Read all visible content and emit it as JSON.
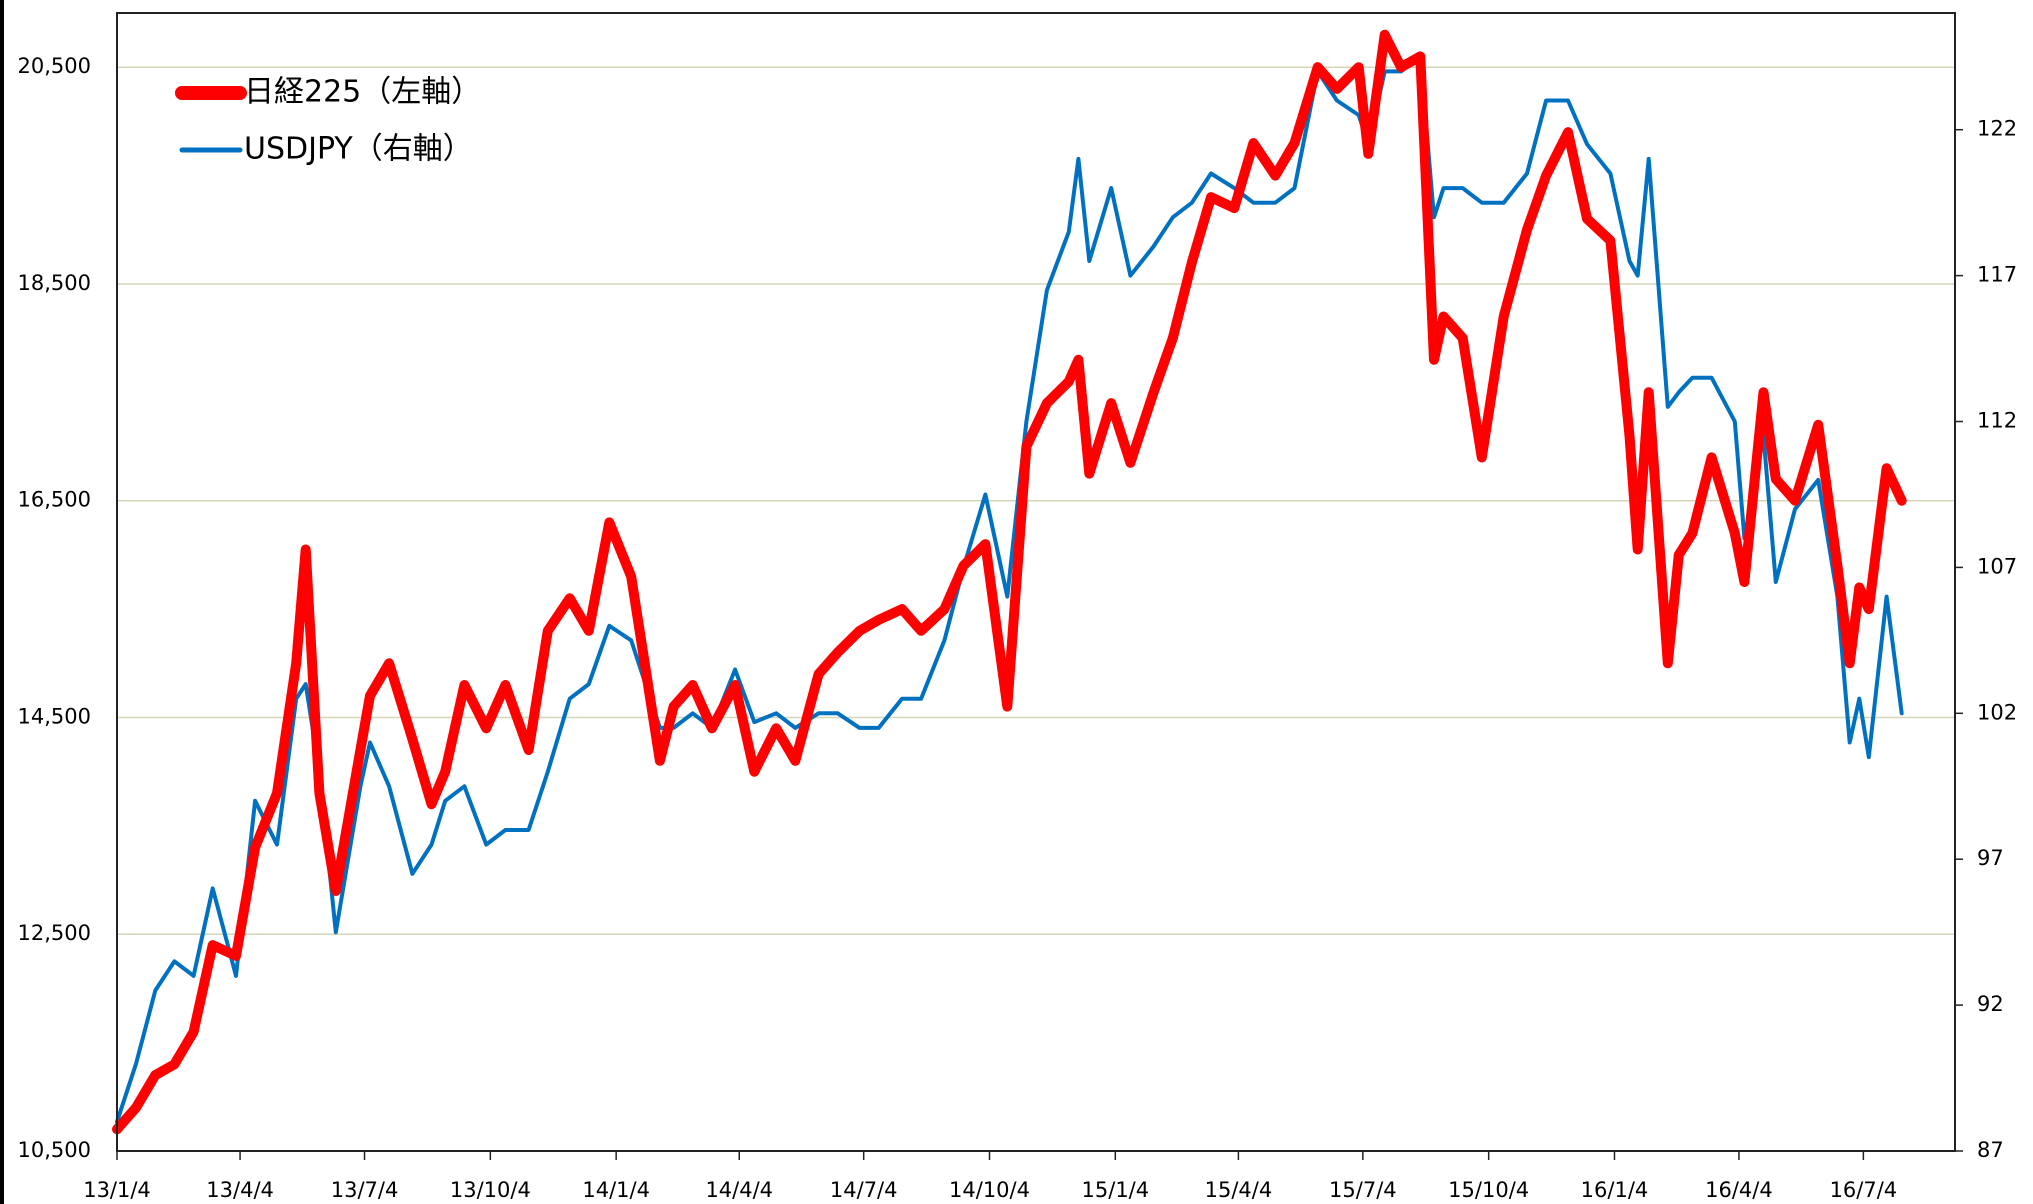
{
  "chart_data": {
    "type": "line",
    "x": [
      "2013-01-04",
      "2013-01-18",
      "2013-02-01",
      "2013-02-15",
      "2013-03-01",
      "2013-03-15",
      "2013-04-01",
      "2013-04-15",
      "2013-05-01",
      "2013-05-15",
      "2013-05-22",
      "2013-06-01",
      "2013-06-13",
      "2013-07-01",
      "2013-07-08",
      "2013-07-22",
      "2013-08-08",
      "2013-08-22",
      "2013-09-01",
      "2013-09-15",
      "2013-10-01",
      "2013-10-15",
      "2013-11-01",
      "2013-11-15",
      "2013-12-01",
      "2013-12-15",
      "2013-12-30",
      "2014-01-15",
      "2014-02-05",
      "2014-02-15",
      "2014-03-01",
      "2014-03-15",
      "2014-04-01",
      "2014-04-15",
      "2014-05-01",
      "2014-05-15",
      "2014-06-01",
      "2014-06-15",
      "2014-07-01",
      "2014-07-15",
      "2014-08-01",
      "2014-08-15",
      "2014-09-01",
      "2014-09-15",
      "2014-10-01",
      "2014-10-17",
      "2014-10-31",
      "2014-11-15",
      "2014-12-01",
      "2014-12-08",
      "2014-12-16",
      "2015-01-01",
      "2015-01-15",
      "2015-02-01",
      "2015-02-15",
      "2015-03-01",
      "2015-03-15",
      "2015-04-01",
      "2015-04-15",
      "2015-05-01",
      "2015-05-15",
      "2015-06-01",
      "2015-06-15",
      "2015-07-01",
      "2015-07-08",
      "2015-07-20",
      "2015-08-01",
      "2015-08-15",
      "2015-08-25",
      "2015-09-01",
      "2015-09-15",
      "2015-09-29",
      "2015-10-15",
      "2015-11-01",
      "2015-11-15",
      "2015-12-01",
      "2015-12-15",
      "2016-01-01",
      "2016-01-15",
      "2016-01-21",
      "2016-01-29",
      "2016-02-12",
      "2016-02-20",
      "2016-03-01",
      "2016-03-15",
      "2016-04-01",
      "2016-04-08",
      "2016-04-22",
      "2016-05-01",
      "2016-05-15",
      "2016-06-01",
      "2016-06-15",
      "2016-06-24",
      "2016-07-01",
      "2016-07-08",
      "2016-07-21",
      "2016-08-01"
    ],
    "series": [
      {
        "name": "日経225（左軸）",
        "color": "#ff0000",
        "axis": "y",
        "values": [
          10700,
          10900,
          11200,
          11300,
          11600,
          12400,
          12300,
          13300,
          13800,
          15000,
          16050,
          13800,
          12900,
          14200,
          14700,
          15000,
          14300,
          13700,
          14000,
          14800,
          14400,
          14800,
          14200,
          15300,
          15600,
          15300,
          16300,
          15800,
          14100,
          14600,
          14800,
          14400,
          14800,
          14000,
          14400,
          14100,
          14900,
          15100,
          15300,
          15400,
          15500,
          15300,
          15500,
          15900,
          16100,
          14600,
          17000,
          17400,
          17600,
          17800,
          16750,
          17400,
          16850,
          17500,
          18000,
          18700,
          19300,
          19200,
          19800,
          19500,
          19800,
          20500,
          20300,
          20500,
          19700,
          20800,
          20500,
          20600,
          17800,
          18200,
          18000,
          16900,
          18200,
          19000,
          19500,
          19900,
          19100,
          18900,
          17100,
          16050,
          17500,
          15000,
          16000,
          16200,
          16900,
          16200,
          15750,
          17500,
          16700,
          16500,
          17200,
          15900,
          15000,
          15700,
          15500,
          16800,
          16500
        ]
      },
      {
        "name": "USDJPY（右軸）",
        "color": "#0070c0",
        "axis": "y2",
        "values": [
          88,
          90,
          92.5,
          93.5,
          93,
          96,
          93,
          99,
          97.5,
          102.5,
          103,
          100,
          94.5,
          99.5,
          101,
          99.5,
          96.5,
          97.5,
          99,
          99.5,
          97.5,
          98,
          98,
          100,
          102.5,
          103,
          105,
          104.5,
          101.5,
          101.5,
          102,
          101.5,
          103.5,
          101.7,
          102,
          101.5,
          102,
          102,
          101.5,
          101.5,
          102.5,
          102.5,
          104.5,
          107,
          109.5,
          106,
          112,
          116.5,
          118.5,
          121,
          117.5,
          120,
          117,
          118,
          119,
          119.5,
          120.5,
          120,
          119.5,
          119.5,
          120,
          124,
          123,
          122.5,
          121.5,
          124,
          124,
          124.5,
          119,
          120,
          120,
          119.5,
          119.5,
          120.5,
          123,
          123,
          121.5,
          120.5,
          117.5,
          117,
          121,
          112.5,
          113,
          113.5,
          113.5,
          112,
          108,
          111.5,
          106.5,
          109,
          110,
          106,
          101,
          102.5,
          100.5,
          106,
          102
        ]
      }
    ],
    "xlim": [
      "2013-01-04",
      "2016-09-09"
    ],
    "xticks": [
      {
        "value": "2013-01-04",
        "label": "13/1/4"
      },
      {
        "value": "2013-04-04",
        "label": "13/4/4"
      },
      {
        "value": "2013-07-04",
        "label": "13/7/4"
      },
      {
        "value": "2013-10-04",
        "label": "13/10/4"
      },
      {
        "value": "2014-01-04",
        "label": "14/1/4"
      },
      {
        "value": "2014-04-04",
        "label": "14/4/4"
      },
      {
        "value": "2014-07-04",
        "label": "14/7/4"
      },
      {
        "value": "2014-10-04",
        "label": "14/10/4"
      },
      {
        "value": "2015-01-04",
        "label": "15/1/4"
      },
      {
        "value": "2015-04-04",
        "label": "15/4/4"
      },
      {
        "value": "2015-07-04",
        "label": "15/7/4"
      },
      {
        "value": "2015-10-04",
        "label": "15/10/4"
      },
      {
        "value": "2016-01-04",
        "label": "16/1/4"
      },
      {
        "value": "2016-04-04",
        "label": "16/4/4"
      },
      {
        "value": "2016-07-04",
        "label": "16/7/4"
      }
    ],
    "ylim": [
      10500,
      21000
    ],
    "yticks": [
      {
        "value": 10500,
        "label": "10,500"
      },
      {
        "value": 12500,
        "label": "12,500"
      },
      {
        "value": 14500,
        "label": "14,500"
      },
      {
        "value": 16500,
        "label": "16,500"
      },
      {
        "value": 18500,
        "label": "18,500"
      },
      {
        "value": 20500,
        "label": "20,500"
      }
    ],
    "y2lim": [
      87,
      126
    ],
    "y2ticks": [
      87,
      92,
      97,
      102,
      107,
      112,
      117,
      122
    ],
    "grid": true,
    "legend": "upper left"
  }
}
